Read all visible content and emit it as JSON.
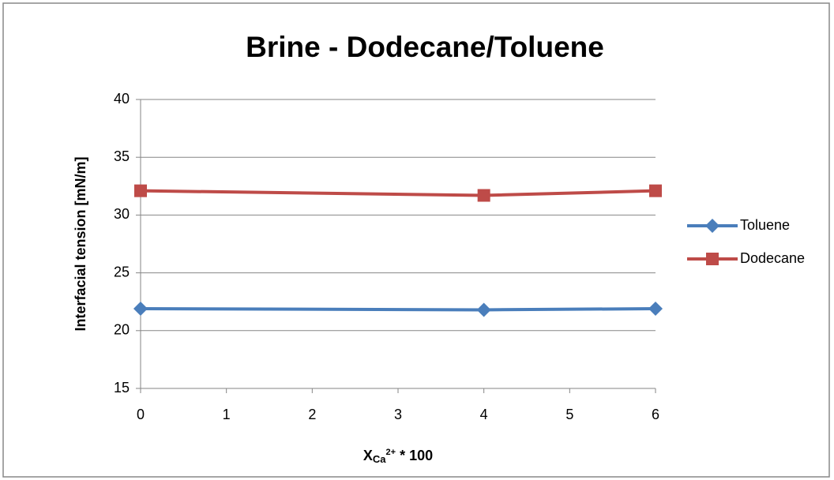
{
  "chart_data": {
    "type": "line",
    "title": "Brine - Dodecane/Toluene",
    "ylabel": "Interfacial tension [mN/m]",
    "xlabel": {
      "base": "X",
      "sub": "Ca",
      "sup": "2+",
      "rest": " * 100"
    },
    "x": [
      0,
      4,
      6
    ],
    "series": [
      {
        "name": "Toluene",
        "color": "#4a7ebb",
        "marker": "diamond",
        "values": [
          21.9,
          21.8,
          21.9
        ]
      },
      {
        "name": "Dodecane",
        "color": "#be4b48",
        "marker": "square",
        "values": [
          32.1,
          31.7,
          32.1
        ]
      }
    ],
    "xlim": [
      0,
      6
    ],
    "xticks": [
      0,
      1,
      2,
      3,
      4,
      5,
      6
    ],
    "ylim": [
      15,
      40
    ],
    "yticks": [
      15,
      20,
      25,
      30,
      35,
      40
    ],
    "grid": true,
    "legend": "right"
  }
}
